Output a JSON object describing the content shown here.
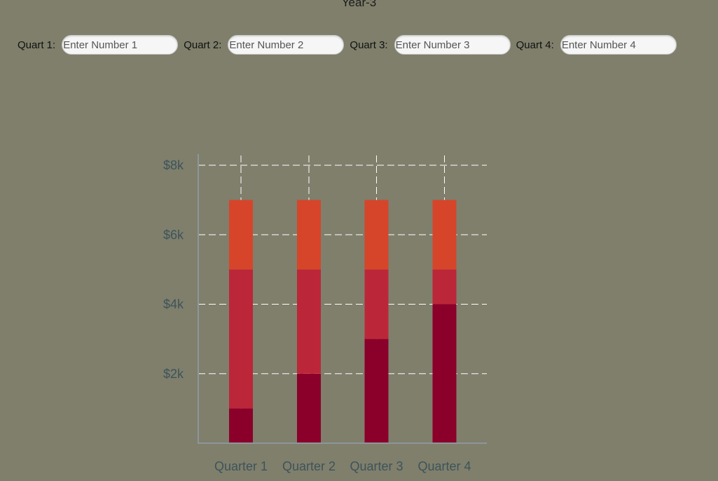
{
  "title": "Year-3",
  "inputs": [
    {
      "label": "Quart 1:",
      "placeholder": "Enter Number 1"
    },
    {
      "label": "Quart 2:",
      "placeholder": "Enter Number 2"
    },
    {
      "label": "Quart 3:",
      "placeholder": "Enter Number 3"
    },
    {
      "label": "Quart 4:",
      "placeholder": "Enter Number 4"
    }
  ],
  "colors": {
    "background": "#7f7f6c",
    "bottom_series": "#8b002a",
    "middle_series": "#bb2739",
    "top_series": "#d6452a",
    "axis": "#8c979b",
    "grid": "#ffffff",
    "tick_text": "#3e535a"
  },
  "chart_data": {
    "type": "bar",
    "stacked": true,
    "categories": [
      "Quarter 1",
      "Quarter 2",
      "Quarter 3",
      "Quarter 4"
    ],
    "series": [
      {
        "values": [
          1000,
          2000,
          3000,
          4000
        ],
        "color": "#8b002a"
      },
      {
        "values": [
          4000,
          3000,
          2000,
          1000
        ],
        "color": "#bb2739"
      },
      {
        "values": [
          2000,
          2000,
          2000,
          2000
        ],
        "color": "#d6452a"
      }
    ],
    "yticks": [
      2000,
      4000,
      6000,
      8000
    ],
    "ytick_labels": [
      "$2k",
      "$4k",
      "$6k",
      "$8k"
    ],
    "ylim": [
      0,
      8300
    ],
    "grid": true,
    "grid_style": "dashed"
  }
}
